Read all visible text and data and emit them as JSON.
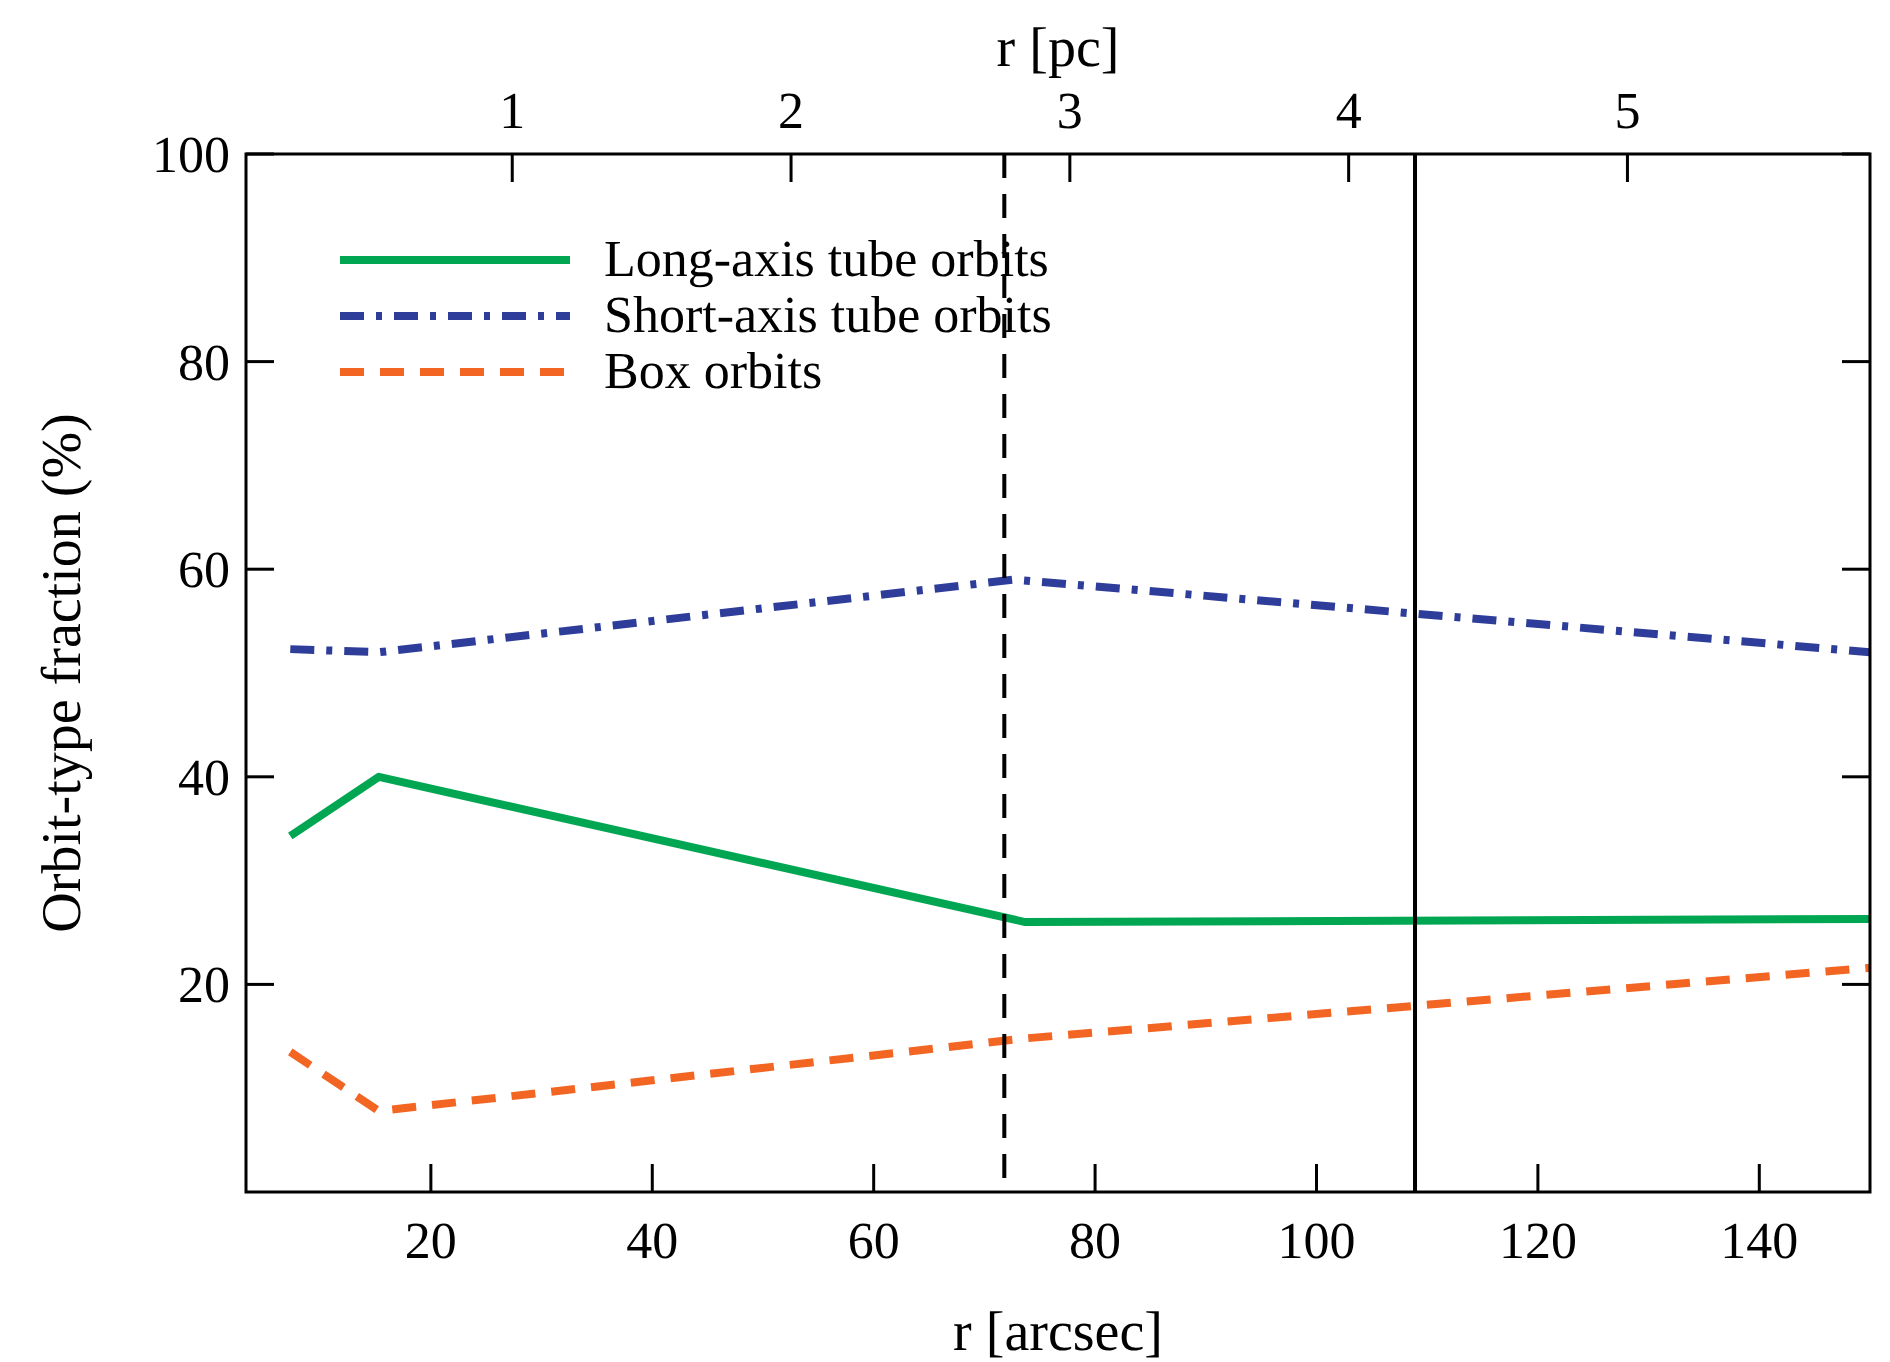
{
  "chart_data": {
    "type": "line",
    "xlabel": "r [arcsec]",
    "ylabel": "Orbit-type fraction (%)",
    "x2label": "r [pc]",
    "xlim": [
      3.3,
      150
    ],
    "xticks": [
      20,
      40,
      60,
      80,
      100,
      120,
      140
    ],
    "x2lim": [
      0.045,
      5.87
    ],
    "x2ticks": [
      1,
      2,
      3,
      4,
      5
    ],
    "ylim": [
      0,
      100
    ],
    "yticks": [
      20,
      40,
      60,
      80,
      100
    ],
    "legend": "top left",
    "grid": false,
    "series": [
      {
        "name": "Long-axis tube orbits",
        "color": "#00a651",
        "line_style": "solid",
        "x": [
          7.3,
          15.3,
          73.7,
          150
        ],
        "values": [
          34.3,
          40,
          26,
          26.3
        ]
      },
      {
        "name": "Short-axis tube orbits",
        "color": "#2e3d9a",
        "line_style": "dashdot",
        "x": [
          7.3,
          15.3,
          72.7,
          150
        ],
        "values": [
          52.3,
          52,
          59,
          52
        ]
      },
      {
        "name": "Box orbits",
        "color": "#f26522",
        "line_style": "dashed",
        "x": [
          7.3,
          15.3,
          73.7,
          150
        ],
        "values": [
          13.5,
          7.8,
          14.8,
          21.6
        ]
      }
    ],
    "ref_lines": [
      {
        "axis": "x",
        "value": 71.8,
        "line_style": "dashed",
        "color": "#000000"
      },
      {
        "axis": "x",
        "value": 108.9,
        "line_style": "solid",
        "color": "#000000"
      }
    ]
  }
}
